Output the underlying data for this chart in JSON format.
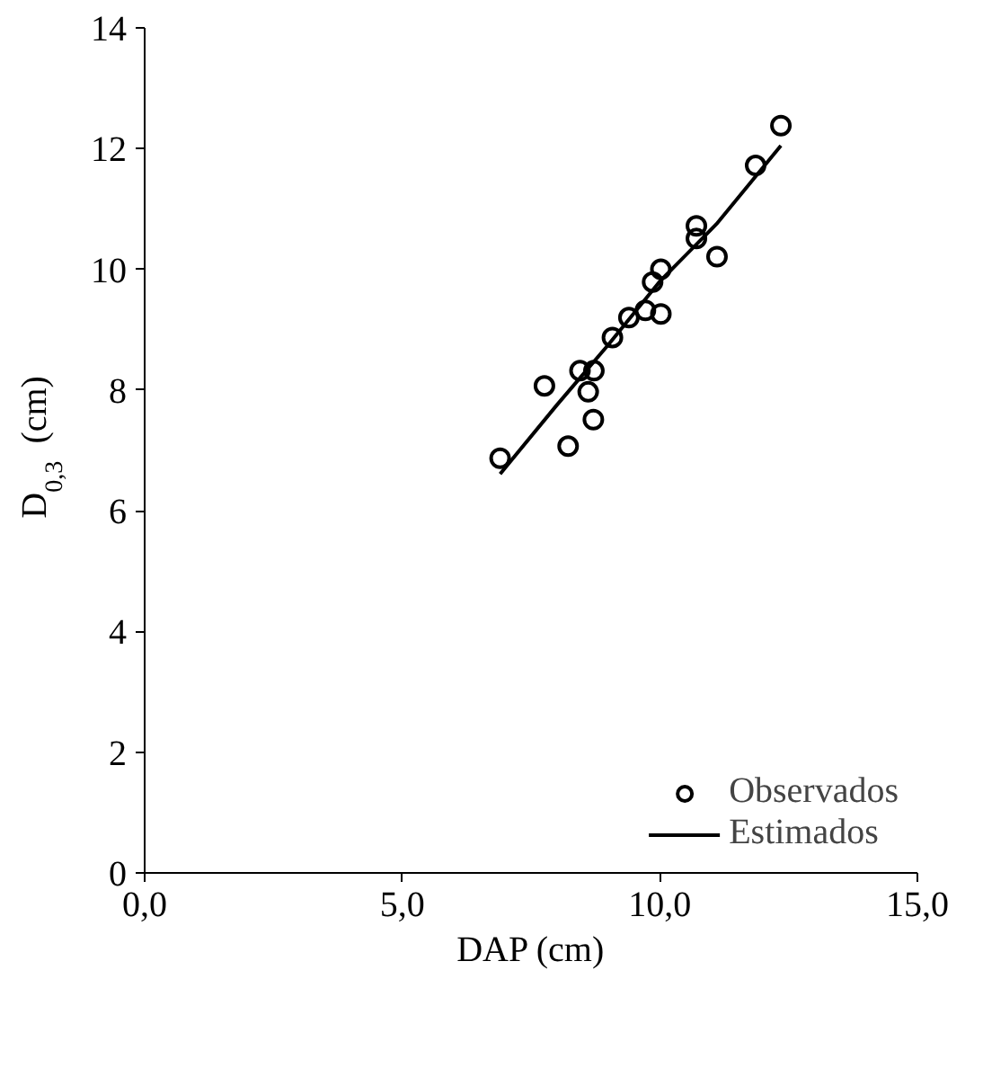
{
  "chart_data": {
    "type": "scatter",
    "xlabel": "DAP (cm)",
    "ylabel": "D$_{0,3}$ (cm)",
    "xlim": [
      0,
      15
    ],
    "ylim": [
      0,
      14
    ],
    "xticks": [
      {
        "value": 0,
        "label": "0,0"
      },
      {
        "value": 5,
        "label": "5,0"
      },
      {
        "value": 10,
        "label": "10,0"
      },
      {
        "value": 15,
        "label": "15,0"
      }
    ],
    "yticks": [
      0,
      2,
      4,
      6,
      8,
      10,
      12,
      14
    ],
    "grid": false,
    "legend": "bottom right",
    "series": [
      {
        "name": "Observados",
        "marker": "circle",
        "color": "#000000",
        "x": [
          6.9,
          7.76,
          8.22,
          8.45,
          8.72,
          8.61,
          8.71,
          9.08,
          9.4,
          9.72,
          10.02,
          9.86,
          10.02,
          10.71,
          10.71,
          11.11,
          11.86,
          12.35
        ],
        "values": [
          6.87,
          8.07,
          7.07,
          8.32,
          8.32,
          7.97,
          7.51,
          8.87,
          9.2,
          9.32,
          9.26,
          9.79,
          10.0,
          10.72,
          10.51,
          10.21,
          11.72,
          12.38
        ]
      },
      {
        "name": "Estimados",
        "type": "line",
        "line_style": "solid",
        "color": "#000000",
        "x": [
          6.9,
          8.0,
          9.0,
          10.0,
          11.1,
          12.35
        ],
        "values": [
          6.61,
          7.75,
          8.75,
          9.8,
          10.75,
          12.05
        ]
      }
    ]
  }
}
